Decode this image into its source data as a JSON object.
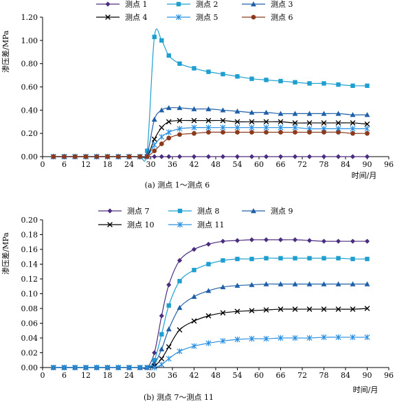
{
  "chart_data": [
    {
      "type": "line",
      "caption": "(a) 测点 1～测点 6",
      "ylabel": "渗压差/MPa",
      "xlabel": "时间/月",
      "xlim": [
        0,
        96
      ],
      "ylim": [
        0,
        1.2
      ],
      "x_ticks": [
        "0",
        "6",
        "12",
        "18",
        "24",
        "30",
        "36",
        "42",
        "48",
        "54",
        "60",
        "66",
        "72",
        "78",
        "84",
        "90",
        "96"
      ],
      "y_ticks": [
        "0.00",
        "0.20",
        "0.40",
        "0.60",
        "0.80",
        "1.00",
        "1.20"
      ],
      "grid": false,
      "legend_position": "top",
      "x": [
        3,
        6,
        9,
        12,
        15,
        18,
        21,
        24,
        27,
        29,
        31,
        33,
        35,
        38,
        42,
        46,
        50,
        54,
        58,
        62,
        66,
        70,
        74,
        78,
        82,
        86,
        90
      ],
      "series": [
        {
          "name": "测点 1",
          "color": "#4B2D7F",
          "marker": "diamond",
          "values": [
            0,
            0,
            0,
            0,
            0,
            0,
            0,
            0,
            0,
            0,
            0,
            0,
            0,
            0,
            0,
            0,
            0,
            0,
            0,
            0,
            0,
            0,
            0,
            0,
            0,
            0,
            0
          ]
        },
        {
          "name": "测点 2",
          "color": "#1E9FD0",
          "marker": "square",
          "values": [
            0,
            0,
            0,
            0,
            0,
            0,
            0,
            0,
            0,
            0.05,
            1.03,
            1.0,
            0.87,
            0.8,
            0.76,
            0.73,
            0.71,
            0.69,
            0.67,
            0.66,
            0.65,
            0.64,
            0.63,
            0.63,
            0.62,
            0.61,
            0.61
          ]
        },
        {
          "name": "测点 3",
          "color": "#1F5FA8",
          "marker": "triangle",
          "values": [
            0,
            0,
            0,
            0,
            0,
            0,
            0,
            0,
            0,
            0.02,
            0.32,
            0.4,
            0.42,
            0.42,
            0.41,
            0.41,
            0.4,
            0.39,
            0.38,
            0.38,
            0.37,
            0.37,
            0.37,
            0.37,
            0.37,
            0.36,
            0.36
          ]
        },
        {
          "name": "测点 4",
          "color": "#000000",
          "marker": "x",
          "values": [
            0,
            0,
            0,
            0,
            0,
            0,
            0,
            0,
            0,
            0,
            0.15,
            0.25,
            0.3,
            0.31,
            0.31,
            0.31,
            0.31,
            0.3,
            0.3,
            0.3,
            0.3,
            0.29,
            0.29,
            0.29,
            0.29,
            0.29,
            0.28
          ]
        },
        {
          "name": "测点 5",
          "color": "#2A8FE0",
          "marker": "star",
          "values": [
            0,
            0,
            0,
            0,
            0,
            0,
            0,
            0,
            0,
            0,
            0.1,
            0.17,
            0.21,
            0.24,
            0.25,
            0.25,
            0.25,
            0.25,
            0.25,
            0.25,
            0.25,
            0.25,
            0.24,
            0.24,
            0.24,
            0.24,
            0.24
          ]
        },
        {
          "name": "测点 6",
          "color": "#8B3A1E",
          "marker": "circle",
          "values": [
            0,
            0,
            0,
            0,
            0,
            0,
            0,
            0,
            0,
            0,
            0.05,
            0.11,
            0.16,
            0.19,
            0.2,
            0.21,
            0.21,
            0.21,
            0.21,
            0.21,
            0.21,
            0.21,
            0.21,
            0.21,
            0.21,
            0.2,
            0.2
          ]
        }
      ]
    },
    {
      "type": "line",
      "caption": "(b) 测点 7～测点 11",
      "ylabel": "渗压差/MPa",
      "xlabel": "时间/月",
      "xlim": [
        0,
        96
      ],
      "ylim": [
        0,
        0.2
      ],
      "x_ticks": [
        "0",
        "6",
        "12",
        "18",
        "24",
        "30",
        "36",
        "42",
        "48",
        "54",
        "60",
        "66",
        "72",
        "78",
        "84",
        "90",
        "96"
      ],
      "y_ticks": [
        "0.00",
        "0.02",
        "0.04",
        "0.06",
        "0.08",
        "0.10",
        "0.12",
        "0.14",
        "0.16",
        "0.18",
        "0.20"
      ],
      "grid": false,
      "legend_position": "top",
      "x": [
        3,
        6,
        9,
        12,
        15,
        18,
        21,
        24,
        27,
        29,
        31,
        33,
        35,
        38,
        42,
        46,
        50,
        54,
        58,
        62,
        66,
        70,
        74,
        78,
        82,
        86,
        90
      ],
      "series": [
        {
          "name": "测点 7",
          "color": "#4B2D7F",
          "marker": "diamond",
          "values": [
            0,
            0,
            0,
            0,
            0,
            0,
            0,
            0,
            0,
            0,
            0.02,
            0.07,
            0.112,
            0.145,
            0.16,
            0.167,
            0.171,
            0.172,
            0.173,
            0.173,
            0.173,
            0.173,
            0.172,
            0.171,
            0.171,
            0.171,
            0.171
          ]
        },
        {
          "name": "测点 8",
          "color": "#1E9FD0",
          "marker": "square",
          "values": [
            0,
            0,
            0,
            0,
            0,
            0,
            0,
            0,
            0,
            0,
            0.01,
            0.045,
            0.084,
            0.117,
            0.132,
            0.14,
            0.145,
            0.147,
            0.147,
            0.148,
            0.148,
            0.148,
            0.148,
            0.148,
            0.148,
            0.147,
            0.147
          ]
        },
        {
          "name": "测点 9",
          "color": "#1F5FA8",
          "marker": "triangle",
          "values": [
            0,
            0,
            0,
            0,
            0,
            0,
            0,
            0,
            0,
            0,
            0.005,
            0.025,
            0.052,
            0.081,
            0.096,
            0.104,
            0.109,
            0.111,
            0.112,
            0.113,
            0.113,
            0.113,
            0.113,
            0.113,
            0.113,
            0.113,
            0.113
          ]
        },
        {
          "name": "测点 10",
          "color": "#000000",
          "marker": "x",
          "values": [
            0,
            0,
            0,
            0,
            0,
            0,
            0,
            0,
            0,
            0,
            0.002,
            0.012,
            0.028,
            0.051,
            0.063,
            0.07,
            0.074,
            0.076,
            0.077,
            0.078,
            0.079,
            0.079,
            0.079,
            0.079,
            0.079,
            0.079,
            0.08
          ]
        },
        {
          "name": "测点 11",
          "color": "#2A8FE0",
          "marker": "star",
          "values": [
            0,
            0,
            0,
            0,
            0,
            0,
            0,
            0,
            0,
            0,
            0,
            0.004,
            0.012,
            0.022,
            0.029,
            0.033,
            0.036,
            0.038,
            0.039,
            0.039,
            0.04,
            0.04,
            0.04,
            0.041,
            0.041,
            0.041,
            0.041
          ]
        }
      ]
    }
  ]
}
